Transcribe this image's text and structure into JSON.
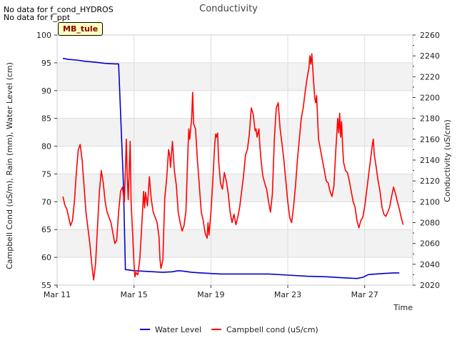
{
  "notes": [
    "No data for f_cond_HYDROS",
    "No data for f_ppt"
  ],
  "site_tag": "MB_tule",
  "chart_data": {
    "type": "line",
    "title": "Conductivity",
    "xlabel": "Time",
    "ylabel_left": "Campbell Cond (uS/m), Rain (mm), Water Level (cm)",
    "ylabel_right": "Conductivity (uS/cm)",
    "x_range_days": [
      11.0,
      29.5
    ],
    "x_ticks": [
      {
        "day": 11,
        "label": "Mar 11"
      },
      {
        "day": 15,
        "label": "Mar 15"
      },
      {
        "day": 19,
        "label": "Mar 19"
      },
      {
        "day": 23,
        "label": "Mar 23"
      },
      {
        "day": 27,
        "label": "Mar 27"
      }
    ],
    "ylim_left": [
      55,
      100
    ],
    "yticks_left": [
      55,
      60,
      65,
      70,
      75,
      80,
      85,
      90,
      95,
      100
    ],
    "ylim_right": [
      2020,
      2260
    ],
    "yticks_right": [
      2020,
      2040,
      2060,
      2080,
      2100,
      2120,
      2140,
      2160,
      2180,
      2200,
      2220,
      2240,
      2260
    ],
    "grid": true,
    "band_colors": [
      "#ffffff",
      "#f2f2f2"
    ],
    "series": [
      {
        "name": "Water Level",
        "axis": "left",
        "color": "#0000cc",
        "points": [
          [
            11.3,
            95.8
          ],
          [
            11.6,
            95.6
          ],
          [
            12.0,
            95.5
          ],
          [
            12.4,
            95.3
          ],
          [
            13.0,
            95.1
          ],
          [
            13.5,
            94.9
          ],
          [
            14.0,
            94.8
          ],
          [
            14.2,
            94.8
          ],
          [
            14.45,
            73.0
          ],
          [
            14.55,
            57.8
          ],
          [
            15.0,
            57.6
          ],
          [
            15.5,
            57.5
          ],
          [
            16.0,
            57.4
          ],
          [
            16.5,
            57.3
          ],
          [
            17.0,
            57.4
          ],
          [
            17.3,
            57.6
          ],
          [
            17.6,
            57.5
          ],
          [
            18.0,
            57.3
          ],
          [
            18.5,
            57.2
          ],
          [
            19.0,
            57.1
          ],
          [
            19.5,
            57.0
          ],
          [
            20.0,
            57.0
          ],
          [
            21.0,
            57.0
          ],
          [
            22.0,
            57.0
          ],
          [
            23.0,
            56.8
          ],
          [
            24.0,
            56.6
          ],
          [
            25.0,
            56.5
          ],
          [
            26.0,
            56.3
          ],
          [
            26.6,
            56.2
          ],
          [
            26.9,
            56.4
          ],
          [
            27.2,
            56.9
          ],
          [
            27.6,
            57.0
          ],
          [
            28.0,
            57.1
          ],
          [
            28.5,
            57.2
          ],
          [
            28.8,
            57.2
          ]
        ]
      },
      {
        "name": "Campbell cond (uS/cm)",
        "axis": "right",
        "color": "#ff0000",
        "points": [
          [
            11.3,
            2105
          ],
          [
            11.4,
            2097
          ],
          [
            11.5,
            2093
          ],
          [
            11.6,
            2085
          ],
          [
            11.7,
            2077
          ],
          [
            11.8,
            2082
          ],
          [
            11.9,
            2100
          ],
          [
            12.0,
            2128
          ],
          [
            12.1,
            2150
          ],
          [
            12.2,
            2155
          ],
          [
            12.3,
            2140
          ],
          [
            12.4,
            2115
          ],
          [
            12.5,
            2090
          ],
          [
            12.6,
            2075
          ],
          [
            12.7,
            2060
          ],
          [
            12.8,
            2040
          ],
          [
            12.9,
            2025
          ],
          [
            13.0,
            2040
          ],
          [
            13.1,
            2075
          ],
          [
            13.2,
            2110
          ],
          [
            13.3,
            2130
          ],
          [
            13.4,
            2118
          ],
          [
            13.5,
            2100
          ],
          [
            13.6,
            2090
          ],
          [
            13.7,
            2085
          ],
          [
            13.8,
            2080
          ],
          [
            13.9,
            2070
          ],
          [
            14.0,
            2060
          ],
          [
            14.1,
            2063
          ],
          [
            14.2,
            2090
          ],
          [
            14.3,
            2110
          ],
          [
            14.4,
            2114
          ],
          [
            14.5,
            2100
          ],
          [
            14.6,
            2160
          ],
          [
            14.65,
            2122
          ],
          [
            14.7,
            2102
          ],
          [
            14.8,
            2158
          ],
          [
            14.85,
            2100
          ],
          [
            14.9,
            2080
          ],
          [
            15.0,
            2040
          ],
          [
            15.05,
            2028
          ],
          [
            15.1,
            2032
          ],
          [
            15.2,
            2030
          ],
          [
            15.3,
            2045
          ],
          [
            15.4,
            2075
          ],
          [
            15.5,
            2110
          ],
          [
            15.55,
            2094
          ],
          [
            15.6,
            2109
          ],
          [
            15.7,
            2096
          ],
          [
            15.8,
            2124
          ],
          [
            15.9,
            2102
          ],
          [
            16.0,
            2090
          ],
          [
            16.1,
            2085
          ],
          [
            16.2,
            2080
          ],
          [
            16.3,
            2066
          ],
          [
            16.35,
            2045
          ],
          [
            16.4,
            2036
          ],
          [
            16.5,
            2044
          ],
          [
            16.6,
            2103
          ],
          [
            16.7,
            2122
          ],
          [
            16.8,
            2150
          ],
          [
            16.85,
            2145
          ],
          [
            16.9,
            2133
          ],
          [
            17.0,
            2158
          ],
          [
            17.1,
            2130
          ],
          [
            17.2,
            2116
          ],
          [
            17.3,
            2090
          ],
          [
            17.4,
            2080
          ],
          [
            17.5,
            2072
          ],
          [
            17.6,
            2077
          ],
          [
            17.7,
            2091
          ],
          [
            17.8,
            2145
          ],
          [
            17.85,
            2170
          ],
          [
            17.9,
            2160
          ],
          [
            18.0,
            2180
          ],
          [
            18.05,
            2205
          ],
          [
            18.1,
            2175
          ],
          [
            18.2,
            2170
          ],
          [
            18.3,
            2140
          ],
          [
            18.4,
            2115
          ],
          [
            18.5,
            2090
          ],
          [
            18.6,
            2082
          ],
          [
            18.7,
            2070
          ],
          [
            18.8,
            2065
          ],
          [
            18.85,
            2080
          ],
          [
            18.9,
            2068
          ],
          [
            19.0,
            2090
          ],
          [
            19.1,
            2120
          ],
          [
            19.2,
            2155
          ],
          [
            19.25,
            2165
          ],
          [
            19.3,
            2162
          ],
          [
            19.35,
            2166
          ],
          [
            19.4,
            2140
          ],
          [
            19.5,
            2118
          ],
          [
            19.6,
            2112
          ],
          [
            19.7,
            2128
          ],
          [
            19.8,
            2120
          ],
          [
            19.9,
            2108
          ],
          [
            20.0,
            2090
          ],
          [
            20.1,
            2080
          ],
          [
            20.2,
            2088
          ],
          [
            20.3,
            2078
          ],
          [
            20.4,
            2085
          ],
          [
            20.5,
            2095
          ],
          [
            20.6,
            2110
          ],
          [
            20.7,
            2125
          ],
          [
            20.8,
            2145
          ],
          [
            20.9,
            2150
          ],
          [
            21.0,
            2165
          ],
          [
            21.1,
            2190
          ],
          [
            21.2,
            2184
          ],
          [
            21.3,
            2168
          ],
          [
            21.35,
            2170
          ],
          [
            21.4,
            2162
          ],
          [
            21.5,
            2170
          ],
          [
            21.55,
            2153
          ],
          [
            21.6,
            2142
          ],
          [
            21.7,
            2125
          ],
          [
            21.8,
            2118
          ],
          [
            21.9,
            2112
          ],
          [
            22.0,
            2100
          ],
          [
            22.1,
            2090
          ],
          [
            22.2,
            2108
          ],
          [
            22.3,
            2160
          ],
          [
            22.4,
            2190
          ],
          [
            22.5,
            2195
          ],
          [
            22.6,
            2170
          ],
          [
            22.7,
            2155
          ],
          [
            22.8,
            2140
          ],
          [
            22.9,
            2120
          ],
          [
            23.0,
            2100
          ],
          [
            23.1,
            2085
          ],
          [
            23.2,
            2080
          ],
          [
            23.3,
            2095
          ],
          [
            23.4,
            2115
          ],
          [
            23.5,
            2140
          ],
          [
            23.6,
            2160
          ],
          [
            23.7,
            2180
          ],
          [
            23.8,
            2190
          ],
          [
            23.9,
            2205
          ],
          [
            24.0,
            2218
          ],
          [
            24.1,
            2228
          ],
          [
            24.15,
            2240
          ],
          [
            24.2,
            2232
          ],
          [
            24.25,
            2242
          ],
          [
            24.3,
            2228
          ],
          [
            24.4,
            2200
          ],
          [
            24.45,
            2195
          ],
          [
            24.5,
            2202
          ],
          [
            24.6,
            2160
          ],
          [
            24.7,
            2150
          ],
          [
            24.8,
            2140
          ],
          [
            24.9,
            2130
          ],
          [
            25.0,
            2120
          ],
          [
            25.1,
            2118
          ],
          [
            25.2,
            2110
          ],
          [
            25.3,
            2105
          ],
          [
            25.4,
            2115
          ],
          [
            25.5,
            2150
          ],
          [
            25.6,
            2180
          ],
          [
            25.65,
            2166
          ],
          [
            25.7,
            2185
          ],
          [
            25.75,
            2162
          ],
          [
            25.8,
            2177
          ],
          [
            25.85,
            2155
          ],
          [
            25.9,
            2138
          ],
          [
            26.0,
            2130
          ],
          [
            26.1,
            2128
          ],
          [
            26.2,
            2120
          ],
          [
            26.3,
            2110
          ],
          [
            26.4,
            2100
          ],
          [
            26.5,
            2095
          ],
          [
            26.6,
            2082
          ],
          [
            26.7,
            2075
          ],
          [
            26.8,
            2082
          ],
          [
            26.9,
            2085
          ],
          [
            27.0,
            2095
          ],
          [
            27.1,
            2110
          ],
          [
            27.2,
            2125
          ],
          [
            27.3,
            2140
          ],
          [
            27.4,
            2155
          ],
          [
            27.45,
            2160
          ],
          [
            27.5,
            2145
          ],
          [
            27.6,
            2133
          ],
          [
            27.7,
            2120
          ],
          [
            27.8,
            2110
          ],
          [
            27.9,
            2095
          ],
          [
            28.0,
            2088
          ],
          [
            28.1,
            2086
          ],
          [
            28.2,
            2090
          ],
          [
            28.3,
            2095
          ],
          [
            28.4,
            2105
          ],
          [
            28.5,
            2114
          ],
          [
            28.6,
            2108
          ],
          [
            28.7,
            2100
          ],
          [
            28.8,
            2093
          ],
          [
            28.9,
            2085
          ],
          [
            29.0,
            2078
          ]
        ]
      }
    ]
  }
}
